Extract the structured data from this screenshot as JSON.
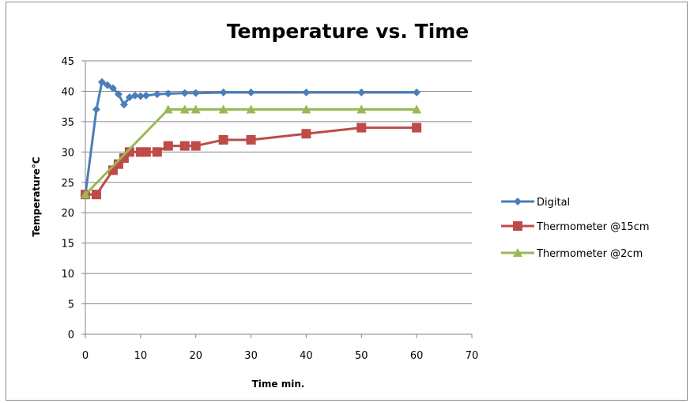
{
  "chart_data": {
    "type": "line",
    "title": "Temperature  vs. Time",
    "xlabel": "Time min.",
    "ylabel": "Temperature°C",
    "xlim": [
      0,
      70
    ],
    "ylim": [
      0,
      45
    ],
    "xticks": [
      0,
      10,
      20,
      30,
      40,
      50,
      60,
      70
    ],
    "yticks": [
      0,
      5,
      10,
      15,
      20,
      25,
      30,
      35,
      40,
      45
    ],
    "grid": "horizontal",
    "legend_position": "right",
    "series": [
      {
        "name": "Digital",
        "color": "#4a7ebb",
        "marker": "diamond",
        "points": [
          [
            0,
            23
          ],
          [
            2,
            37
          ],
          [
            3,
            41.5
          ],
          [
            4,
            41
          ],
          [
            5,
            40.5
          ],
          [
            6,
            39.5
          ],
          [
            7,
            37.8
          ],
          [
            8,
            39
          ],
          [
            9,
            39.3
          ],
          [
            10,
            39.2
          ],
          [
            11,
            39.3
          ],
          [
            13,
            39.5
          ],
          [
            15,
            39.6
          ],
          [
            18,
            39.7
          ],
          [
            20,
            39.7
          ],
          [
            25,
            39.8
          ],
          [
            30,
            39.8
          ],
          [
            40,
            39.8
          ],
          [
            50,
            39.8
          ],
          [
            60,
            39.8
          ]
        ]
      },
      {
        "name": "Thermometer @15cm",
        "color": "#be4b48",
        "marker": "square",
        "points": [
          [
            0,
            23
          ],
          [
            2,
            23
          ],
          [
            5,
            27
          ],
          [
            6,
            28
          ],
          [
            7,
            29
          ],
          [
            8,
            30
          ],
          [
            10,
            30
          ],
          [
            11,
            30
          ],
          [
            13,
            30
          ],
          [
            15,
            31
          ],
          [
            18,
            31
          ],
          [
            20,
            31
          ],
          [
            25,
            32
          ],
          [
            30,
            32
          ],
          [
            40,
            33
          ],
          [
            50,
            34
          ],
          [
            60,
            34
          ]
        ]
      },
      {
        "name": "Thermometer @2cm",
        "color": "#98b954",
        "marker": "triangle",
        "points": [
          [
            0,
            23
          ],
          [
            15,
            37
          ],
          [
            18,
            37
          ],
          [
            20,
            37
          ],
          [
            25,
            37
          ],
          [
            30,
            37
          ],
          [
            40,
            37
          ],
          [
            50,
            37
          ],
          [
            60,
            37
          ]
        ]
      }
    ]
  }
}
